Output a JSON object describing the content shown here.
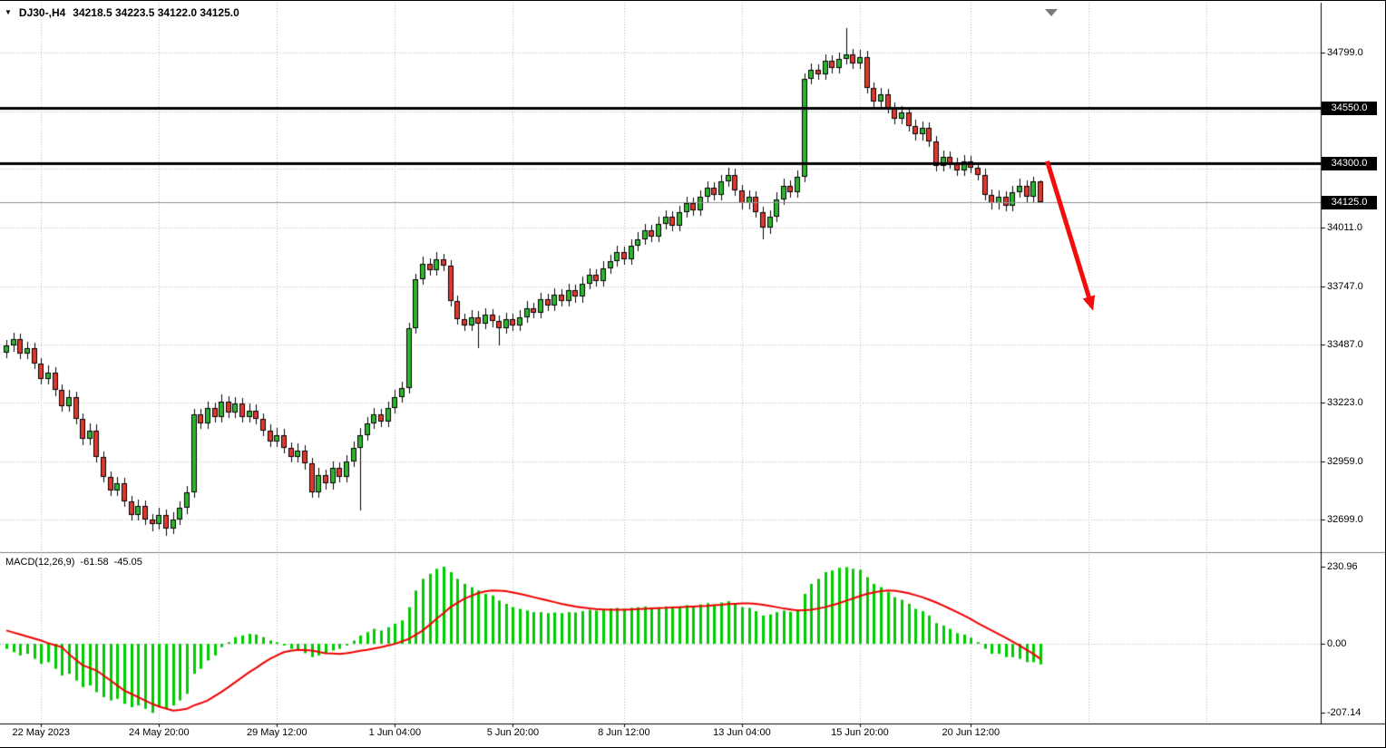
{
  "header": {
    "expander_icon": "▼",
    "symbol_period": "DJ30-,H4",
    "ohlc": "34218.5 34223.5 34122.0 34125.0"
  },
  "indicator": {
    "label": "MACD(12,26,9)",
    "value_main": "-61.58",
    "value_signal": "-45.05"
  },
  "colors": {
    "bull": "#2db52d",
    "bear": "#e0382e",
    "wick": "#000000",
    "grid": "#b8b8b8",
    "hline": "#000000",
    "current_price_line": "#909090",
    "badge_bg": "#000000",
    "badge_text": "#ffffff",
    "macd_histogram": "#00cc00",
    "macd_signal": "#f00000",
    "arrow": "#f20c0c",
    "axis_line": "#000000"
  },
  "chart_data": [
    {
      "type": "candlestick",
      "symbol": "DJ30-",
      "timeframe": "H4",
      "ylim": [
        32552,
        35023
      ],
      "y_ticks": [
        34799,
        34011,
        33747,
        33487,
        33223,
        32959,
        32699
      ],
      "y_gridlines": [
        34799,
        34535,
        34275,
        34011,
        33747,
        33487,
        33223,
        32959,
        32699
      ],
      "x_tick_indices": [
        5,
        22,
        39,
        56,
        73,
        89,
        106,
        123,
        139
      ],
      "x_tick_labels": [
        "22 May 2023",
        "24 May 20:00",
        "29 May 12:00",
        "1 Jun 04:00",
        "5 Jun 20:00",
        "8 Jun 12:00",
        "13 Jun 04:00",
        "15 Jun 20:00",
        "20 Jun 12:00"
      ],
      "extra_grid_indices": [
        156,
        173
      ],
      "hlines": [
        34550.0,
        34300.0
      ],
      "current_price": 34125.0,
      "candles": [
        [
          33450,
          33505,
          33425,
          33480
        ],
        [
          33480,
          33540,
          33455,
          33510
        ],
        [
          33510,
          33535,
          33420,
          33445
        ],
        [
          33445,
          33500,
          33420,
          33470
        ],
        [
          33470,
          33495,
          33375,
          33400
        ],
        [
          33400,
          33425,
          33305,
          33330
        ],
        [
          33330,
          33390,
          33305,
          33360
        ],
        [
          33360,
          33385,
          33255,
          33280
        ],
        [
          33280,
          33305,
          33185,
          33210
        ],
        [
          33210,
          33280,
          33185,
          33250
        ],
        [
          33250,
          33275,
          33125,
          33150
        ],
        [
          33150,
          33175,
          33035,
          33060
        ],
        [
          33060,
          33130,
          33035,
          33100
        ],
        [
          33100,
          33125,
          32955,
          32980
        ],
        [
          32980,
          33005,
          32865,
          32890
        ],
        [
          32890,
          32915,
          32805,
          32830
        ],
        [
          32830,
          32890,
          32805,
          32860
        ],
        [
          32860,
          32885,
          32755,
          32780
        ],
        [
          32780,
          32805,
          32695,
          32720
        ],
        [
          32720,
          32790,
          32695,
          32760
        ],
        [
          32760,
          32785,
          32675,
          32700
        ],
        [
          32700,
          32725,
          32645,
          32680
        ],
        [
          32680,
          32750,
          32655,
          32720
        ],
        [
          32720,
          32745,
          32625,
          32660
        ],
        [
          32660,
          32730,
          32635,
          32700
        ],
        [
          32700,
          32780,
          32675,
          32750
        ],
        [
          32750,
          32850,
          32725,
          32820
        ],
        [
          32820,
          33195,
          32795,
          33170
        ],
        [
          33170,
          33195,
          33105,
          33130
        ],
        [
          33130,
          33230,
          33105,
          33200
        ],
        [
          33200,
          33225,
          33135,
          33160
        ],
        [
          33160,
          33260,
          33135,
          33230
        ],
        [
          33230,
          33255,
          33155,
          33180
        ],
        [
          33180,
          33250,
          33155,
          33220
        ],
        [
          33220,
          33245,
          33135,
          33160
        ],
        [
          33160,
          33220,
          33135,
          33190
        ],
        [
          33190,
          33215,
          33125,
          33150
        ],
        [
          33150,
          33175,
          33075,
          33100
        ],
        [
          33100,
          33125,
          33025,
          33050
        ],
        [
          33050,
          33110,
          33025,
          33080
        ],
        [
          33080,
          33105,
          32995,
          33020
        ],
        [
          33020,
          33045,
          32955,
          32980
        ],
        [
          32980,
          33040,
          32955,
          33010
        ],
        [
          33010,
          33035,
          32925,
          32950
        ],
        [
          32950,
          32975,
          32795,
          32820
        ],
        [
          32820,
          32930,
          32795,
          32900
        ],
        [
          32900,
          32925,
          32835,
          32860
        ],
        [
          32860,
          32960,
          32835,
          32930
        ],
        [
          32930,
          32955,
          32865,
          32890
        ],
        [
          32890,
          32990,
          32865,
          32960
        ],
        [
          32960,
          33050,
          32935,
          33020
        ],
        [
          33020,
          33110,
          32740,
          33080
        ],
        [
          33080,
          33160,
          33055,
          33130
        ],
        [
          33130,
          33200,
          33105,
          33170
        ],
        [
          33170,
          33195,
          33115,
          33140
        ],
        [
          33140,
          33230,
          33115,
          33200
        ],
        [
          33200,
          33280,
          33175,
          33250
        ],
        [
          33250,
          33320,
          33225,
          33290
        ],
        [
          33290,
          33585,
          33265,
          33560
        ],
        [
          33560,
          33805,
          33535,
          33780
        ],
        [
          33780,
          33880,
          33755,
          33850
        ],
        [
          33850,
          33875,
          33795,
          33820
        ],
        [
          33820,
          33900,
          33795,
          33870
        ],
        [
          33870,
          33895,
          33815,
          33840
        ],
        [
          33840,
          33865,
          33655,
          33680
        ],
        [
          33680,
          33705,
          33575,
          33600
        ],
        [
          33600,
          33625,
          33545,
          33570
        ],
        [
          33570,
          33640,
          33545,
          33610
        ],
        [
          33610,
          33635,
          33470,
          33580
        ],
        [
          33580,
          33650,
          33555,
          33620
        ],
        [
          33620,
          33645,
          33565,
          33590
        ],
        [
          33590,
          33615,
          33480,
          33560
        ],
        [
          33560,
          33630,
          33535,
          33600
        ],
        [
          33600,
          33625,
          33545,
          33570
        ],
        [
          33570,
          33640,
          33545,
          33610
        ],
        [
          33610,
          33680,
          33585,
          33650
        ],
        [
          33650,
          33675,
          33605,
          33630
        ],
        [
          33630,
          33720,
          33605,
          33690
        ],
        [
          33690,
          33715,
          33635,
          33660
        ],
        [
          33660,
          33740,
          33635,
          33710
        ],
        [
          33710,
          33735,
          33655,
          33680
        ],
        [
          33680,
          33760,
          33655,
          33730
        ],
        [
          33730,
          33755,
          33675,
          33700
        ],
        [
          33700,
          33790,
          33675,
          33760
        ],
        [
          33760,
          33830,
          33735,
          33800
        ],
        [
          33800,
          33825,
          33745,
          33770
        ],
        [
          33770,
          33860,
          33745,
          33830
        ],
        [
          33830,
          33890,
          33805,
          33860
        ],
        [
          33860,
          33930,
          33835,
          33900
        ],
        [
          33900,
          33925,
          33845,
          33870
        ],
        [
          33870,
          33960,
          33845,
          33930
        ],
        [
          33930,
          33990,
          33905,
          33960
        ],
        [
          33960,
          34030,
          33935,
          34000
        ],
        [
          34000,
          34025,
          33945,
          33970
        ],
        [
          33970,
          34060,
          33945,
          34030
        ],
        [
          34030,
          34090,
          34005,
          34060
        ],
        [
          34060,
          34085,
          33995,
          34020
        ],
        [
          34020,
          34110,
          33995,
          34080
        ],
        [
          34080,
          34150,
          34055,
          34120
        ],
        [
          34120,
          34145,
          34065,
          34090
        ],
        [
          34090,
          34180,
          34065,
          34150
        ],
        [
          34150,
          34220,
          34125,
          34190
        ],
        [
          34190,
          34215,
          34135,
          34160
        ],
        [
          34160,
          34250,
          34135,
          34220
        ],
        [
          34220,
          34280,
          34195,
          34250
        ],
        [
          34250,
          34275,
          34155,
          34180
        ],
        [
          34180,
          34205,
          34095,
          34120
        ],
        [
          34120,
          34180,
          34095,
          34150
        ],
        [
          34150,
          34175,
          34055,
          34080
        ],
        [
          34080,
          34105,
          33960,
          34010
        ],
        [
          34010,
          34090,
          33985,
          34060
        ],
        [
          34060,
          34170,
          34035,
          34140
        ],
        [
          34140,
          34230,
          34115,
          34200
        ],
        [
          34200,
          34225,
          34145,
          34170
        ],
        [
          34170,
          34270,
          34145,
          34240
        ],
        [
          34240,
          34705,
          34215,
          34680
        ],
        [
          34680,
          34750,
          34655,
          34720
        ],
        [
          34720,
          34745,
          34675,
          34700
        ],
        [
          34700,
          34790,
          34675,
          34760
        ],
        [
          34760,
          34785,
          34705,
          34730
        ],
        [
          34730,
          34800,
          34705,
          34770
        ],
        [
          34770,
          34910,
          34745,
          34790
        ],
        [
          34790,
          34815,
          34725,
          34750
        ],
        [
          34750,
          34810,
          34725,
          34780
        ],
        [
          34780,
          34805,
          34615,
          34640
        ],
        [
          34640,
          34665,
          34555,
          34580
        ],
        [
          34580,
          34640,
          34555,
          34610
        ],
        [
          34610,
          34635,
          34525,
          34550
        ],
        [
          34550,
          34575,
          34475,
          34500
        ],
        [
          34500,
          34560,
          34475,
          34530
        ],
        [
          34530,
          34555,
          34445,
          34470
        ],
        [
          34470,
          34495,
          34405,
          34430
        ],
        [
          34430,
          34490,
          34405,
          34460
        ],
        [
          34460,
          34485,
          34375,
          34400
        ],
        [
          34400,
          34425,
          34265,
          34290
        ],
        [
          34290,
          34360,
          34265,
          34330
        ],
        [
          34330,
          34355,
          34275,
          34300
        ],
        [
          34300,
          34325,
          34245,
          34270
        ],
        [
          34270,
          34340,
          34245,
          34310
        ],
        [
          34310,
          34335,
          34255,
          34280
        ],
        [
          34280,
          34305,
          34225,
          34250
        ],
        [
          34250,
          34275,
          34135,
          34160
        ],
        [
          34160,
          34185,
          34095,
          34120
        ],
        [
          34120,
          34180,
          34095,
          34150
        ],
        [
          34150,
          34175,
          34085,
          34110
        ],
        [
          34110,
          34200,
          34085,
          34170
        ],
        [
          34170,
          34230,
          34145,
          34200
        ],
        [
          34200,
          34225,
          34125,
          34150
        ],
        [
          34150,
          34240,
          34125,
          34218.5
        ],
        [
          34218.5,
          34223.5,
          34122,
          34125
        ]
      ]
    },
    {
      "type": "macd",
      "params": "12,26,9",
      "ylim": [
        -239,
        264
      ],
      "y_ticks": [
        230.96,
        0,
        -207.14
      ],
      "histogram": [
        -15,
        -25,
        -35,
        -30,
        -45,
        -60,
        -55,
        -75,
        -95,
        -90,
        -110,
        -130,
        -125,
        -145,
        -160,
        -170,
        -165,
        -180,
        -190,
        -185,
        -195,
        -207.14,
        -190,
        -195,
        -185,
        -170,
        -150,
        -90,
        -75,
        -50,
        -35,
        -10,
        5,
        20,
        25,
        30,
        28,
        20,
        10,
        5,
        -5,
        -15,
        -20,
        -28,
        -40,
        -35,
        -30,
        -20,
        -15,
        -5,
        10,
        25,
        35,
        45,
        40,
        50,
        60,
        70,
        110,
        160,
        195,
        210,
        225,
        230.96,
        215,
        195,
        180,
        170,
        160,
        150,
        145,
        130,
        120,
        110,
        105,
        100,
        95,
        95,
        92,
        94,
        92,
        95,
        94,
        98,
        102,
        100,
        103,
        106,
        108,
        105,
        108,
        110,
        112,
        108,
        110,
        112,
        108,
        112,
        116,
        112,
        118,
        122,
        118,
        124,
        128,
        120,
        110,
        108,
        98,
        85,
        88,
        95,
        100,
        96,
        100,
        150,
        180,
        195,
        215,
        220,
        228,
        230,
        225,
        222,
        200,
        180,
        170,
        155,
        140,
        132,
        120,
        105,
        98,
        85,
        62,
        55,
        45,
        32,
        28,
        18,
        5,
        -15,
        -30,
        -30,
        -40,
        -40,
        -45,
        -55,
        -55,
        -61.58
      ],
      "signal": [
        40,
        34,
        28,
        22,
        16,
        10,
        2,
        -4,
        -10,
        -30,
        -48,
        -64,
        -72,
        -80,
        -95,
        -110,
        -125,
        -140,
        -150,
        -160,
        -170,
        -180,
        -188,
        -194,
        -200,
        -198,
        -195,
        -185,
        -178,
        -170,
        -157,
        -144,
        -130,
        -115,
        -100,
        -85,
        -72,
        -58,
        -45,
        -35,
        -25,
        -21,
        -18,
        -19,
        -20,
        -24,
        -28,
        -29,
        -30,
        -28,
        -25,
        -21,
        -18,
        -14,
        -10,
        -5,
        0,
        7,
        15,
        27,
        40,
        57,
        75,
        92,
        110,
        123,
        135,
        144,
        152,
        157,
        160,
        159,
        158,
        154,
        150,
        145,
        140,
        135,
        130,
        125,
        120,
        116,
        112,
        109,
        106,
        104,
        103,
        102,
        102,
        102,
        103,
        104,
        105,
        106,
        107,
        108,
        109,
        110,
        111,
        112,
        113,
        114,
        116,
        117,
        119,
        120,
        121,
        121,
        120,
        117,
        114,
        110,
        106,
        103,
        100,
        101,
        102,
        106,
        110,
        116,
        122,
        129,
        136,
        143,
        150,
        154,
        158,
        160,
        159,
        156,
        152,
        146,
        140,
        132,
        124,
        115,
        105,
        95,
        85,
        74,
        62,
        51,
        40,
        29,
        18,
        7,
        -5,
        -18,
        -30,
        -45.05
      ]
    }
  ],
  "annotations": [
    {
      "type": "arrow",
      "from_index": 150,
      "from_price": 34310,
      "to_index": 156,
      "to_price": 33700
    }
  ]
}
